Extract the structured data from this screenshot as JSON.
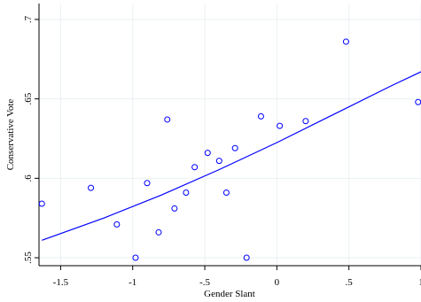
{
  "chart_data": {
    "type": "scatter",
    "xlabel": "Gender Slant",
    "ylabel": "Conservative Vote",
    "xlim": [
      -1.65,
      1.0
    ],
    "ylim": [
      0.545,
      0.71
    ],
    "x_ticks": [
      -1.5,
      -1,
      -0.5,
      0,
      0.5,
      1
    ],
    "x_tick_labels": [
      "-1.5",
      "-1",
      "-.5",
      "0",
      ".5",
      "1"
    ],
    "y_ticks": [
      0.55,
      0.6,
      0.65,
      0.7
    ],
    "y_tick_labels": [
      ".55",
      ".6",
      ".65",
      ".7"
    ],
    "grid": true,
    "legend": false,
    "colors": {
      "points": "#0000ff",
      "fit_line": "#0000ff",
      "grid": "#eaf2f3",
      "axis": "#000000"
    },
    "series": [
      {
        "kind": "points",
        "x": [
          -1.63,
          -1.29,
          -1.11,
          -0.98,
          -0.9,
          -0.82,
          -0.76,
          -0.71,
          -0.63,
          -0.57,
          -0.48,
          -0.4,
          -0.35,
          -0.29,
          -0.21,
          -0.11,
          0.02,
          0.2,
          0.48,
          0.98
        ],
        "y": [
          0.584,
          0.594,
          0.571,
          0.55,
          0.597,
          0.566,
          0.637,
          0.581,
          0.591,
          0.607,
          0.616,
          0.611,
          0.591,
          0.619,
          0.55,
          0.639,
          0.633,
          0.636,
          0.686,
          0.648
        ]
      },
      {
        "kind": "fit-line",
        "x": [
          -1.63,
          -1.2,
          -0.8,
          -0.4,
          0.0,
          0.4,
          0.8,
          1.0
        ],
        "y": [
          0.561,
          0.575,
          0.5895,
          0.6055,
          0.6225,
          0.6405,
          0.6585,
          0.667
        ]
      }
    ]
  }
}
